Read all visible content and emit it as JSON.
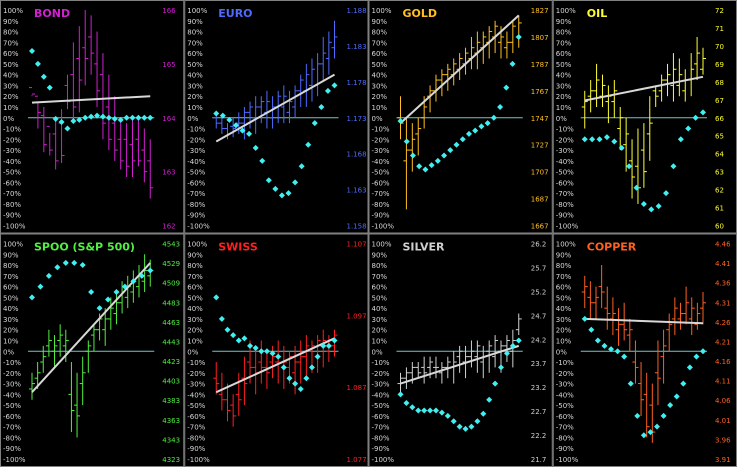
{
  "ticks_pct": [
    "100%",
    "90%",
    "80%",
    "70%",
    "60%",
    "50%",
    "40%",
    "30%",
    "20%",
    "10%",
    "0%",
    "-10%",
    "-20%",
    "-30%",
    "-40%",
    "-50%",
    "-60%",
    "-70%",
    "-80%",
    "-90%",
    "-100%"
  ],
  "chart_data": [
    {
      "title": "BOND",
      "type": "bar",
      "color": "#d020d0",
      "right_ticks": [
        "166",
        "165",
        "164",
        "163",
        "162"
      ],
      "bars": [
        [
          21,
          20,
          28,
          22
        ],
        [
          14,
          -10,
          20,
          5
        ],
        [
          10,
          -32,
          2,
          -25
        ],
        [
          -14,
          -35,
          -8,
          -30
        ],
        [
          -2,
          -48,
          -15,
          -40
        ],
        [
          8,
          -42,
          -5,
          -35
        ],
        [
          40,
          8,
          30,
          15
        ],
        [
          70,
          -5,
          40,
          10
        ],
        [
          85,
          5,
          55,
          35
        ],
        [
          100,
          30,
          65,
          55
        ],
        [
          95,
          40,
          75,
          60
        ],
        [
          80,
          10,
          50,
          25
        ],
        [
          60,
          -20,
          40,
          -5
        ],
        [
          40,
          -30,
          10,
          -20
        ],
        [
          20,
          -40,
          -5,
          -30
        ],
        [
          0,
          -48,
          -20,
          -40
        ],
        [
          -5,
          -55,
          -20,
          -45
        ],
        [
          0,
          -55,
          -25,
          -40
        ],
        [
          2,
          -45,
          -20,
          -40
        ],
        [
          -10,
          -60,
          -30,
          -50
        ],
        [
          -20,
          -75,
          -40,
          -65
        ]
      ],
      "osc": [
        62,
        50,
        38,
        28,
        -1,
        -4,
        -10,
        -3,
        -2,
        0,
        1,
        2,
        1,
        0,
        -1,
        -2,
        0,
        0,
        0,
        0,
        0
      ],
      "trend": [
        14,
        20
      ]
    },
    {
      "title": "EURO",
      "type": "bar",
      "color": "#4d6bff",
      "right_ticks": [
        "1.188",
        "1.183",
        "1.178",
        "1.173",
        "1.168",
        "1.163",
        "1.158"
      ],
      "bars": [
        [
          2,
          -10,
          0,
          -5
        ],
        [
          0,
          -15,
          -5,
          -10
        ],
        [
          -5,
          -20,
          -10,
          -15
        ],
        [
          0,
          -18,
          -8,
          -10
        ],
        [
          5,
          -15,
          -5,
          -5
        ],
        [
          10,
          -20,
          -5,
          5
        ],
        [
          15,
          -10,
          5,
          10
        ],
        [
          20,
          -15,
          0,
          10
        ],
        [
          20,
          -5,
          10,
          15
        ],
        [
          25,
          -10,
          5,
          15
        ],
        [
          20,
          -10,
          0,
          10
        ],
        [
          25,
          -5,
          10,
          20
        ],
        [
          30,
          -5,
          10,
          20
        ],
        [
          25,
          -5,
          5,
          15
        ],
        [
          30,
          0,
          10,
          25
        ],
        [
          40,
          10,
          25,
          35
        ],
        [
          50,
          10,
          25,
          40
        ],
        [
          55,
          15,
          30,
          45
        ],
        [
          60,
          20,
          30,
          50
        ],
        [
          75,
          35,
          50,
          60
        ],
        [
          80,
          40,
          55,
          70
        ],
        [
          90,
          55,
          65,
          75
        ]
      ],
      "osc": [
        4,
        2,
        -2,
        -7,
        -12,
        -15,
        -28,
        -40,
        -58,
        -66,
        -72,
        -70,
        -60,
        -45,
        -25,
        -5,
        10,
        25,
        30
      ],
      "trend": [
        -22,
        40
      ]
    },
    {
      "title": "GOLD",
      "type": "bar",
      "color": "#ffc020",
      "right_ticks": [
        "1827",
        "1807",
        "1787",
        "1767",
        "1747",
        "1727",
        "1707",
        "1687",
        "1667"
      ],
      "bars": [
        [
          20,
          -20,
          0,
          -5
        ],
        [
          0,
          -85,
          -40,
          -30
        ],
        [
          -5,
          -50,
          -30,
          -20
        ],
        [
          0,
          -35,
          -15,
          -10
        ],
        [
          20,
          -10,
          0,
          10
        ],
        [
          30,
          5,
          20,
          25
        ],
        [
          40,
          15,
          25,
          35
        ],
        [
          45,
          20,
          35,
          40
        ],
        [
          50,
          25,
          40,
          45
        ],
        [
          55,
          30,
          40,
          50
        ],
        [
          60,
          35,
          45,
          55
        ],
        [
          65,
          40,
          50,
          60
        ],
        [
          75,
          45,
          55,
          65
        ],
        [
          80,
          45,
          60,
          70
        ],
        [
          80,
          50,
          65,
          75
        ],
        [
          85,
          55,
          70,
          80
        ],
        [
          90,
          60,
          75,
          85
        ],
        [
          85,
          55,
          70,
          75
        ],
        [
          80,
          55,
          65,
          70
        ],
        [
          90,
          60,
          70,
          85
        ],
        [
          95,
          65,
          75,
          88
        ]
      ],
      "osc": [
        -3,
        -22,
        -35,
        -45,
        -48,
        -44,
        -40,
        -35,
        -30,
        -25,
        -20,
        -15,
        -12,
        -8,
        -5,
        0,
        10,
        28,
        50,
        75
      ],
      "trend": [
        -5,
        95
      ]
    },
    {
      "title": "OIL",
      "type": "bar",
      "color": "#ffff30",
      "right_ticks": [
        "72",
        "71",
        "70",
        "69",
        "68",
        "67",
        "66",
        "65",
        "64",
        "63",
        "62",
        "61",
        "60"
      ],
      "bars": [
        [
          25,
          -10,
          10,
          15
        ],
        [
          35,
          5,
          20,
          25
        ],
        [
          50,
          10,
          25,
          35
        ],
        [
          40,
          10,
          20,
          30
        ],
        [
          30,
          -5,
          15,
          20
        ],
        [
          35,
          0,
          15,
          25
        ],
        [
          10,
          -30,
          -10,
          0
        ],
        [
          0,
          -50,
          -25,
          -15
        ],
        [
          -20,
          -75,
          -40,
          -55
        ],
        [
          -10,
          -80,
          -45,
          -65
        ],
        [
          -5,
          -65,
          -30,
          -50
        ],
        [
          20,
          -40,
          -15,
          -5
        ],
        [
          30,
          10,
          25,
          20
        ],
        [
          40,
          15,
          25,
          35
        ],
        [
          50,
          20,
          35,
          40
        ],
        [
          60,
          15,
          30,
          45
        ],
        [
          55,
          20,
          30,
          40
        ],
        [
          45,
          15,
          25,
          35
        ],
        [
          60,
          20,
          35,
          45
        ],
        [
          75,
          35,
          50,
          60
        ],
        [
          65,
          40,
          45,
          55
        ]
      ],
      "osc": [
        -20,
        -20,
        -20,
        -18,
        -22,
        -28,
        -45,
        -65,
        -80,
        -85,
        -82,
        -70,
        -45,
        -20,
        -10,
        0,
        5
      ],
      "trend": [
        16,
        38
      ]
    },
    {
      "title": "SPOO (S&P 500)",
      "type": "bar",
      "color": "#50f040",
      "right_ticks": [
        "4543",
        "4529",
        "4509",
        "4483",
        "4463",
        "4443",
        "4423",
        "4403",
        "4383",
        "4363",
        "4343",
        "4323"
      ],
      "bars": [
        [
          -20,
          -45,
          -35,
          -30
        ],
        [
          -10,
          -35,
          -25,
          -20
        ],
        [
          5,
          -20,
          -10,
          -5
        ],
        [
          20,
          -5,
          5,
          10
        ],
        [
          15,
          -15,
          0,
          5
        ],
        [
          25,
          -5,
          10,
          15
        ],
        [
          20,
          -10,
          5,
          10
        ],
        [
          -10,
          -75,
          -40,
          -55
        ],
        [
          -20,
          -80,
          -50,
          -60
        ],
        [
          -5,
          -50,
          -30,
          -20
        ],
        [
          10,
          -20,
          0,
          5
        ],
        [
          25,
          0,
          15,
          20
        ],
        [
          35,
          10,
          20,
          30
        ],
        [
          40,
          5,
          20,
          30
        ],
        [
          50,
          20,
          30,
          40
        ],
        [
          55,
          25,
          35,
          45
        ],
        [
          65,
          35,
          45,
          55
        ],
        [
          70,
          40,
          50,
          60
        ],
        [
          75,
          45,
          55,
          65
        ],
        [
          80,
          50,
          60,
          70
        ],
        [
          90,
          55,
          65,
          75
        ],
        [
          85,
          60,
          70,
          75
        ]
      ],
      "osc": [
        50,
        60,
        70,
        78,
        82,
        82,
        80,
        55,
        40,
        48,
        55,
        60,
        65,
        70,
        75
      ],
      "trend": [
        -38,
        82
      ]
    },
    {
      "title": "SWISS",
      "type": "bar",
      "color": "#ff2020",
      "right_ticks": [
        "1.107",
        "1.097",
        "1.087",
        "1.077"
      ],
      "bars": [
        [
          -10,
          -40,
          -25,
          -30
        ],
        [
          -20,
          -55,
          -40,
          -45
        ],
        [
          -30,
          -65,
          -45,
          -55
        ],
        [
          -40,
          -70,
          -50,
          -60
        ],
        [
          -20,
          -60,
          -40,
          -45
        ],
        [
          -5,
          -50,
          -25,
          -30
        ],
        [
          10,
          -30,
          -10,
          -15
        ],
        [
          5,
          -40,
          -15,
          -20
        ],
        [
          10,
          -30,
          -10,
          -15
        ],
        [
          0,
          -35,
          -15,
          -20
        ],
        [
          5,
          -25,
          -10,
          -5
        ],
        [
          10,
          -30,
          -10,
          -5
        ],
        [
          5,
          -35,
          -15,
          -10
        ],
        [
          0,
          -30,
          -15,
          -5
        ],
        [
          5,
          -40,
          -20,
          -10
        ],
        [
          10,
          -30,
          -10,
          -5
        ],
        [
          15,
          -25,
          -5,
          5
        ],
        [
          10,
          -20,
          0,
          5
        ],
        [
          15,
          -20,
          -5,
          10
        ],
        [
          20,
          -15,
          5,
          10
        ],
        [
          15,
          -10,
          0,
          10
        ],
        [
          20,
          -5,
          5,
          15
        ]
      ],
      "osc": [
        50,
        30,
        20,
        15,
        10,
        12,
        5,
        3,
        0,
        0,
        -2,
        -5,
        -15,
        -25,
        -30,
        -35,
        -25,
        -15,
        -5,
        5,
        5,
        10
      ],
      "trend": [
        -38,
        12
      ]
    },
    {
      "title": "SILVER",
      "type": "bar",
      "color": "#d0d0d0",
      "right_ticks": [
        "26.2",
        "25.7",
        "25.2",
        "24.7",
        "24.2",
        "23.7",
        "23.2",
        "22.7",
        "22.2",
        "21.7"
      ],
      "bars": [
        [
          -20,
          -40,
          -30,
          -25
        ],
        [
          -15,
          -35,
          -25,
          -20
        ],
        [
          -10,
          -30,
          -20,
          -15
        ],
        [
          -10,
          -25,
          -15,
          -20
        ],
        [
          -5,
          -30,
          -15,
          -20
        ],
        [
          -5,
          -25,
          -15,
          -10
        ],
        [
          -5,
          -25,
          -15,
          -15
        ],
        [
          -10,
          -30,
          -20,
          -15
        ],
        [
          -5,
          -25,
          -15,
          -10
        ],
        [
          0,
          -30,
          -15,
          -10
        ],
        [
          5,
          -20,
          -5,
          0
        ],
        [
          5,
          -25,
          -10,
          -5
        ],
        [
          10,
          -15,
          -5,
          0
        ],
        [
          10,
          -20,
          -5,
          5
        ],
        [
          5,
          -25,
          -10,
          -5
        ],
        [
          10,
          -20,
          0,
          5
        ],
        [
          15,
          -15,
          -5,
          10
        ],
        [
          10,
          -20,
          0,
          5
        ],
        [
          15,
          -10,
          5,
          10
        ],
        [
          20,
          -15,
          0,
          10
        ],
        [
          35,
          15,
          20,
          30
        ]
      ],
      "osc": [
        -40,
        -48,
        -52,
        -55,
        -55,
        -55,
        -55,
        -57,
        -60,
        -65,
        -70,
        -72,
        -70,
        -65,
        -58,
        -45,
        -30,
        -15,
        -2,
        5,
        10
      ],
      "trend": [
        -30,
        5
      ]
    },
    {
      "title": "COPPER",
      "type": "bar",
      "color": "#ff6020",
      "right_ticks": [
        "4.46",
        "4.41",
        "4.36",
        "4.31",
        "4.26",
        "4.21",
        "4.16",
        "4.11",
        "4.06",
        "4.01",
        "3.96",
        "3.91"
      ],
      "bars": [
        [
          70,
          40,
          55,
          60
        ],
        [
          65,
          30,
          50,
          45
        ],
        [
          60,
          30,
          45,
          50
        ],
        [
          80,
          40,
          60,
          55
        ],
        [
          60,
          20,
          40,
          35
        ],
        [
          50,
          15,
          30,
          35
        ],
        [
          40,
          5,
          20,
          25
        ],
        [
          45,
          10,
          25,
          20
        ],
        [
          30,
          0,
          15,
          20
        ],
        [
          10,
          -30,
          -10,
          -15
        ],
        [
          -10,
          -60,
          -30,
          -45
        ],
        [
          -20,
          -80,
          -40,
          -70
        ],
        [
          -30,
          -85,
          -50,
          -75
        ],
        [
          10,
          -50,
          -20,
          -25
        ],
        [
          20,
          -30,
          -5,
          5
        ],
        [
          35,
          0,
          20,
          25
        ],
        [
          50,
          15,
          30,
          40
        ],
        [
          45,
          20,
          30,
          35
        ],
        [
          60,
          25,
          35,
          45
        ],
        [
          50,
          15,
          30,
          40
        ],
        [
          45,
          20,
          25,
          35
        ],
        [
          55,
          25,
          40,
          45
        ]
      ],
      "osc": [
        30,
        20,
        10,
        5,
        2,
        0,
        -5,
        -30,
        -60,
        -78,
        -75,
        -70,
        -60,
        -50,
        -42,
        -30,
        -15,
        -5,
        0
      ],
      "trend": [
        30,
        26
      ]
    }
  ],
  "style": {
    "bg": "#000000",
    "border": "#808080",
    "zero_line": "#70c8c8",
    "osc_dot": "#40f0f0",
    "trend": "#d8d8d8",
    "tick_text": "#d8d8d8"
  }
}
